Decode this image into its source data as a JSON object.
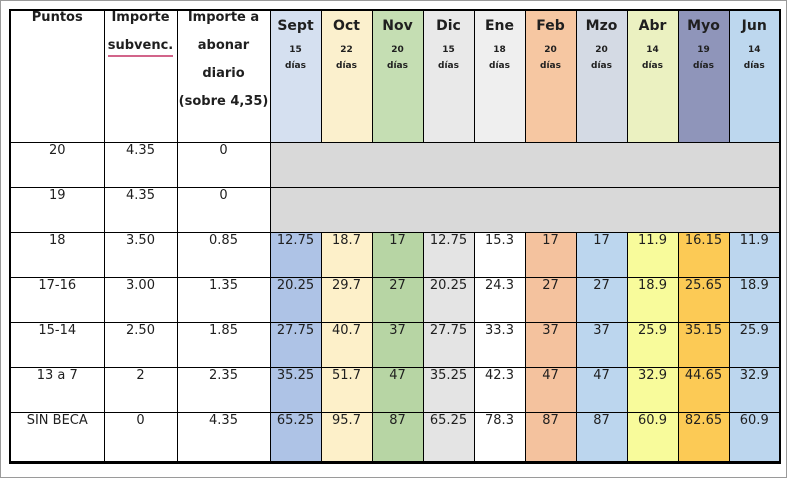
{
  "table": {
    "border_color": "#000000",
    "text_color": "#1f1f1f",
    "underline_color": "#d2648a",
    "merged_row_bg": "#d9d9d9",
    "left_columns": [
      {
        "name": "puntos-header",
        "lines": [
          "Puntos"
        ],
        "underline_index": -1
      },
      {
        "name": "importe-subvenc-header",
        "lines": [
          "Importe",
          "subvenc."
        ],
        "underline_index": 1
      },
      {
        "name": "importe-abonar-header",
        "lines": [
          "Importe a",
          "abonar",
          "diario",
          "(sobre 4,35)"
        ],
        "underline_index": -1
      }
    ],
    "months": [
      {
        "name": "Sept",
        "days": "15",
        "days_word": "días",
        "header_bg": "#d5e0f0",
        "cell_bg": "#aec3e6"
      },
      {
        "name": "Oct",
        "days": "22",
        "days_word": "días",
        "header_bg": "#fbf0cd",
        "cell_bg": "#fdf0c9"
      },
      {
        "name": "Nov",
        "days": "20",
        "days_word": "días",
        "header_bg": "#c5deb3",
        "cell_bg": "#b7d5a4"
      },
      {
        "name": "Dic",
        "days": "15",
        "days_word": "días",
        "header_bg": "#e9e9e9",
        "cell_bg": "#e4e4e4"
      },
      {
        "name": "Ene",
        "days": "18",
        "days_word": "días",
        "header_bg": "#efefef",
        "cell_bg": "#ffffff"
      },
      {
        "name": "Feb",
        "days": "20",
        "days_word": "días",
        "header_bg": "#f6c7a2",
        "cell_bg": "#f4c29e"
      },
      {
        "name": "Mzo",
        "days": "20",
        "days_word": "días",
        "header_bg": "#d4dae4",
        "cell_bg": "#bcd6ee"
      },
      {
        "name": "Abr",
        "days": "14",
        "days_word": "días",
        "header_bg": "#ebf1c1",
        "cell_bg": "#f8fb9b"
      },
      {
        "name": "Myo",
        "days": "19",
        "days_word": "días",
        "header_bg": "#8f95ba",
        "cell_bg": "#fcca55"
      },
      {
        "name": "Jun",
        "days": "14",
        "days_word": "días",
        "header_bg": "#bdd7ee",
        "cell_bg": "#bcd6ee"
      }
    ],
    "rows": [
      {
        "puntos": "20",
        "importe_subvenc": "4.35",
        "importe_abonar": "0",
        "month_values": null
      },
      {
        "puntos": "19",
        "importe_subvenc": "4.35",
        "importe_abonar": "0",
        "month_values": null
      },
      {
        "puntos": "18",
        "importe_subvenc": "3.50",
        "importe_abonar": "0.85",
        "month_values": [
          "12.75",
          "18.7",
          "17",
          "12.75",
          "15.3",
          "17",
          "17",
          "11.9",
          "16.15",
          "11.9"
        ]
      },
      {
        "puntos": "17-16",
        "importe_subvenc": "3.00",
        "importe_abonar": "1.35",
        "month_values": [
          "20.25",
          "29.7",
          "27",
          "20.25",
          "24.3",
          "27",
          "27",
          "18.9",
          "25.65",
          "18.9"
        ]
      },
      {
        "puntos": "15-14",
        "importe_subvenc": "2.50",
        "importe_abonar": "1.85",
        "month_values": [
          "27.75",
          "40.7",
          "37",
          "27.75",
          "33.3",
          "37",
          "37",
          "25.9",
          "35.15",
          "25.9"
        ]
      },
      {
        "puntos": "13 a 7",
        "importe_subvenc": "2",
        "importe_abonar": "2.35",
        "month_values": [
          "35.25",
          "51.7",
          "47",
          "35.25",
          "42.3",
          "47",
          "47",
          "32.9",
          "44.65",
          "32.9"
        ]
      },
      {
        "puntos": "SIN BECA",
        "importe_subvenc": "0",
        "importe_abonar": "4.35",
        "month_values": [
          "65.25",
          "95.7",
          "87",
          "65.25",
          "78.3",
          "87",
          "87",
          "60.9",
          "82.65",
          "60.9"
        ]
      }
    ]
  }
}
